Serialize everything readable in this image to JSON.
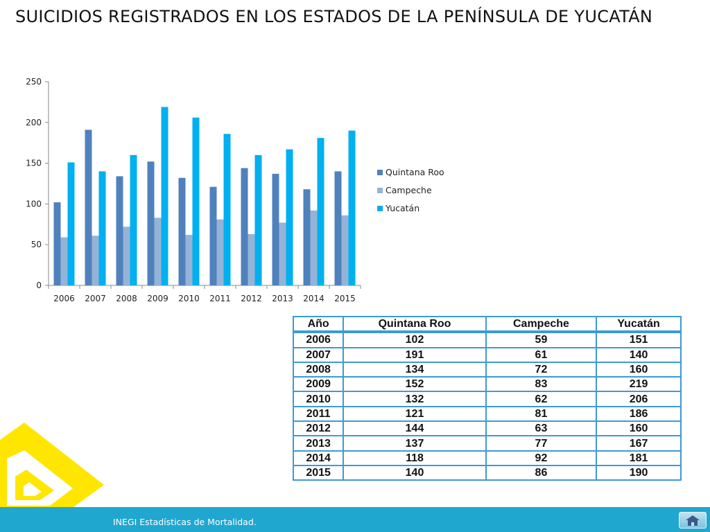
{
  "title": "SUICIDIOS REGISTRADOS EN LOS ESTADOS DE LA PENÍNSULA DE YUCATÁN",
  "footer": {
    "text": "INEGI Estadísticas de Mortalidad."
  },
  "colors": {
    "quintana_roo": "#4f81bd",
    "campeche": "#95b3d7",
    "yucatan": "#00b0f0",
    "footer": "#1fa7cf",
    "table_border": "#3c9ad6",
    "logo": "#ffe600"
  },
  "chart_data": {
    "type": "bar",
    "categories": [
      "2006",
      "2007",
      "2008",
      "2009",
      "2010",
      "2011",
      "2012",
      "2013",
      "2014",
      "2015"
    ],
    "series": [
      {
        "name": "Quintana Roo",
        "values": [
          102,
          191,
          134,
          152,
          132,
          121,
          144,
          137,
          118,
          140
        ]
      },
      {
        "name": "Campeche",
        "values": [
          59,
          61,
          72,
          83,
          62,
          81,
          63,
          77,
          92,
          86
        ]
      },
      {
        "name": "Yucatán",
        "values": [
          151,
          140,
          160,
          219,
          206,
          186,
          160,
          167,
          181,
          190
        ]
      }
    ],
    "ylim": [
      0,
      250
    ],
    "yticks": [
      0,
      50,
      100,
      150,
      200,
      250
    ],
    "grid": false,
    "legend": "right"
  },
  "table": {
    "headers": [
      "Año",
      "Quintana Roo",
      "Campeche",
      "Yucatán"
    ],
    "rows": [
      [
        "2006",
        "102",
        "59",
        "151"
      ],
      [
        "2007",
        "191",
        "61",
        "140"
      ],
      [
        "2008",
        "134",
        "72",
        "160"
      ],
      [
        "2009",
        "152",
        "83",
        "219"
      ],
      [
        "2010",
        "132",
        "62",
        "206"
      ],
      [
        "2011",
        "121",
        "81",
        "186"
      ],
      [
        "2012",
        "144",
        "63",
        "160"
      ],
      [
        "2013",
        "137",
        "77",
        "167"
      ],
      [
        "2014",
        "118",
        "92",
        "181"
      ],
      [
        "2015",
        "140",
        "86",
        "190"
      ]
    ]
  },
  "icons": {
    "home": "home-icon",
    "logo": "yellow-logo"
  }
}
